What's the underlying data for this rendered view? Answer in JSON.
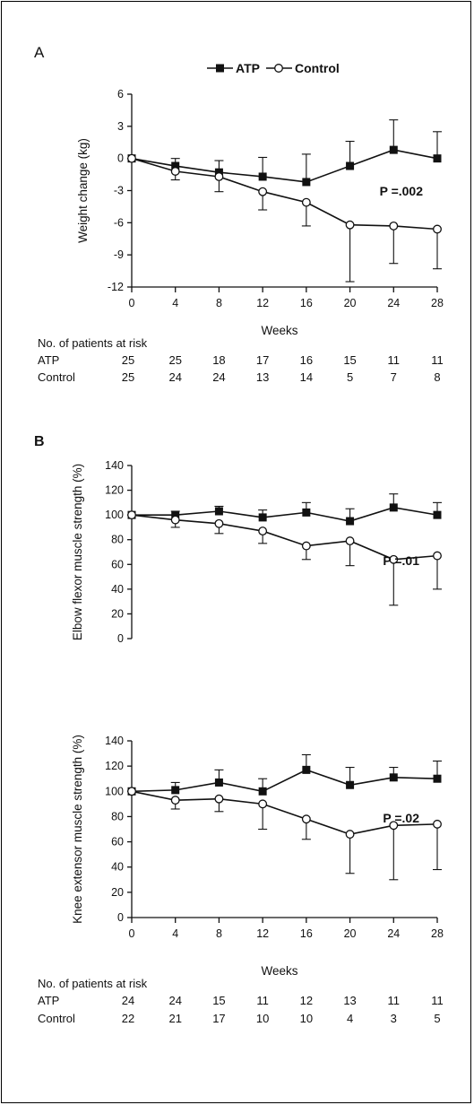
{
  "chart_data": [
    {
      "panel_label": "A",
      "type": "line",
      "legend": [
        "ATP",
        "Control"
      ],
      "legend_position": "top-center",
      "xlabel": "Weeks",
      "ylabel": "Weight change (kg)",
      "x": [
        0,
        4,
        8,
        12,
        16,
        20,
        24,
        28
      ],
      "xticks": [
        "0",
        "4",
        "8",
        "12",
        "16",
        "20",
        "24",
        "28"
      ],
      "ylim": [
        -12,
        6
      ],
      "yticks": [
        "6",
        "3",
        "0",
        "-3",
        "-6",
        "-9",
        "-12"
      ],
      "series": [
        {
          "name": "ATP",
          "marker": "filled-square",
          "values": [
            0,
            -0.7,
            -1.3,
            -1.7,
            -2.2,
            -0.7,
            0.8,
            0
          ],
          "error": [
            0,
            0.7,
            1.1,
            1.8,
            2.6,
            2.3,
            2.8,
            2.5
          ]
        },
        {
          "name": "Control",
          "marker": "open-circle",
          "values": [
            0,
            -1.2,
            -1.7,
            -3.1,
            -4.1,
            -6.2,
            -6.3,
            -6.6
          ],
          "error": [
            0,
            0.8,
            1.4,
            1.7,
            2.2,
            5.3,
            3.5,
            3.7
          ]
        }
      ],
      "annotation": "P =.002",
      "grid": false
    },
    {
      "panel_label": "B",
      "type": "line",
      "xlabel": "",
      "ylabel": "Elbow flexor muscle strength (%)",
      "x": [
        0,
        4,
        8,
        12,
        16,
        20,
        24,
        28
      ],
      "ylim": [
        0,
        140
      ],
      "yticks": [
        "140",
        "120",
        "100",
        "80",
        "60",
        "40",
        "20",
        "0"
      ],
      "series": [
        {
          "name": "ATP",
          "marker": "filled-square",
          "values": [
            100,
            100,
            103,
            98,
            102,
            95,
            106,
            100
          ],
          "error": [
            0,
            3,
            4,
            6,
            8,
            10,
            11,
            10
          ]
        },
        {
          "name": "Control",
          "marker": "open-circle",
          "values": [
            100,
            96,
            93,
            87,
            75,
            79,
            64,
            67
          ],
          "error": [
            0,
            6,
            8,
            10,
            11,
            20,
            37,
            27
          ]
        }
      ],
      "annotation": "P =.01",
      "grid": false
    },
    {
      "type": "line",
      "xlabel": "Weeks",
      "ylabel": "Knee extensor muscle strength (%)",
      "x": [
        0,
        4,
        8,
        12,
        16,
        20,
        24,
        28
      ],
      "xticks": [
        "0",
        "4",
        "8",
        "12",
        "16",
        "20",
        "24",
        "28"
      ],
      "ylim": [
        0,
        140
      ],
      "yticks": [
        "140",
        "120",
        "100",
        "80",
        "60",
        "40",
        "20",
        "0"
      ],
      "series": [
        {
          "name": "ATP",
          "marker": "filled-square",
          "values": [
            100,
            101,
            107,
            100,
            117,
            105,
            111,
            110
          ],
          "error": [
            0,
            6,
            10,
            10,
            12,
            14,
            8,
            14
          ]
        },
        {
          "name": "Control",
          "marker": "open-circle",
          "values": [
            100,
            93,
            94,
            90,
            78,
            66,
            73,
            74
          ],
          "error": [
            0,
            7,
            10,
            20,
            16,
            31,
            43,
            36
          ]
        }
      ],
      "annotation": "P =.02",
      "grid": false
    }
  ],
  "risk_tables": [
    {
      "title": "No. of patients at risk",
      "rows": [
        {
          "label": "ATP",
          "values": [
            "25",
            "25",
            "18",
            "17",
            "16",
            "15",
            "11",
            "11"
          ]
        },
        {
          "label": "Control",
          "values": [
            "25",
            "24",
            "24",
            "13",
            "14",
            "5",
            "7",
            "8"
          ]
        }
      ]
    },
    {
      "title": "No. of patients at risk",
      "rows": [
        {
          "label": "ATP",
          "values": [
            "24",
            "24",
            "15",
            "11",
            "12",
            "13",
            "11",
            "11"
          ]
        },
        {
          "label": "Control",
          "values": [
            "22",
            "21",
            "17",
            "10",
            "10",
            "4",
            "3",
            "5"
          ]
        }
      ]
    }
  ],
  "colors": {
    "line": "#111111",
    "background": "#ffffff"
  }
}
